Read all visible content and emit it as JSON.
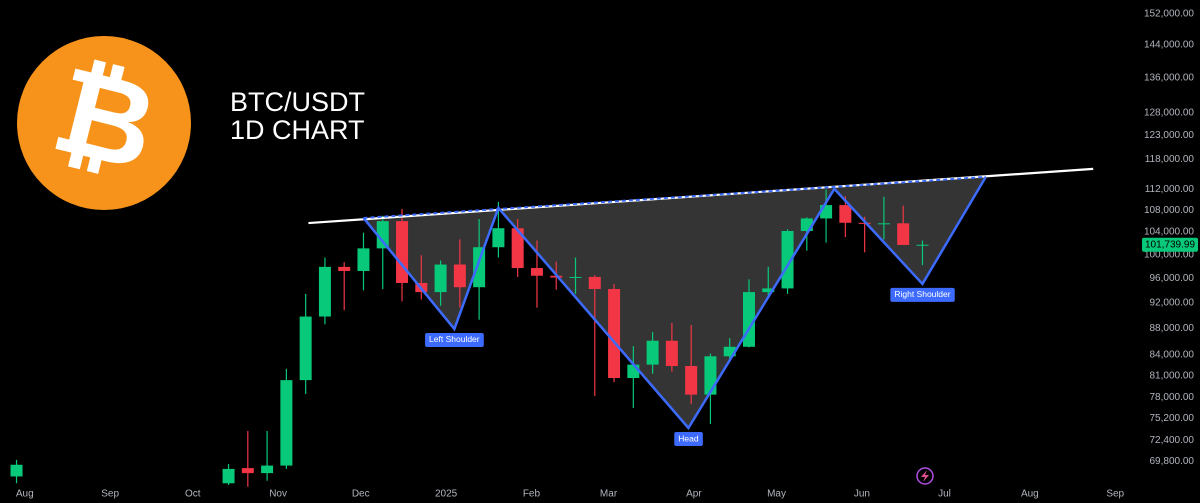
{
  "chart_data": {
    "type": "candlestick",
    "title": "BTC/USDT",
    "subtitle": "1D CHART",
    "logo_text": "₿",
    "log_scale": true,
    "grid": false,
    "up_color": "#08c979",
    "down_color": "#f23645",
    "x": [
      "2024-07-29",
      "2024-10-14",
      "2024-10-21",
      "2024-10-28",
      "2024-11-04",
      "2024-11-11",
      "2024-11-18",
      "2024-11-25",
      "2024-12-02",
      "2024-12-09",
      "2024-12-16",
      "2024-12-23",
      "2024-12-30",
      "2025-01-06",
      "2025-01-13",
      "2025-01-20",
      "2025-01-27",
      "2025-02-03",
      "2025-02-10",
      "2025-02-17",
      "2025-02-24",
      "2025-03-03",
      "2025-03-10",
      "2025-03-17",
      "2025-03-24",
      "2025-03-31",
      "2025-04-07",
      "2025-04-14",
      "2025-04-21",
      "2025-04-28",
      "2025-05-05",
      "2025-05-12",
      "2025-05-19",
      "2025-05-26",
      "2025-06-02",
      "2025-06-09",
      "2025-06-16",
      "2025-06-23"
    ],
    "open": [
      68000,
      67200,
      69000,
      68400,
      69300,
      80400,
      89800,
      97900,
      97200,
      101100,
      106000,
      95200,
      93700,
      98300,
      94500,
      101300,
      104700,
      97700,
      96400,
      96100,
      96200,
      94200,
      80700,
      82600,
      86100,
      82400,
      78400,
      83800,
      85200,
      93700,
      94300,
      104200,
      106500,
      109000,
      105700,
      105500,
      105600,
      101700
    ],
    "high": [
      70000,
      69500,
      73600,
      73600,
      82000,
      93400,
      99500,
      98700,
      103900,
      107000,
      108300,
      99900,
      99000,
      102700,
      106400,
      109600,
      106400,
      102500,
      98800,
      99500,
      96500,
      95000,
      85300,
      87400,
      88800,
      88500,
      84200,
      86500,
      95800,
      97900,
      104500,
      106700,
      112000,
      110700,
      106800,
      110600,
      108900,
      102500
    ],
    "low": [
      67200,
      67000,
      66800,
      67500,
      68900,
      78500,
      88600,
      90800,
      94000,
      94200,
      92200,
      92500,
      91500,
      91200,
      89300,
      99500,
      96200,
      91200,
      94100,
      93400,
      78200,
      80100,
      76600,
      81300,
      81600,
      77100,
      74500,
      83100,
      85100,
      92800,
      93400,
      100700,
      102100,
      103100,
      100400,
      102700,
      102300,
      98200
    ],
    "close": [
      69400,
      68900,
      68400,
      69300,
      80400,
      89800,
      97900,
      97200,
      101100,
      106000,
      95200,
      93700,
      98300,
      94500,
      101300,
      104700,
      97700,
      96400,
      96100,
      96200,
      94200,
      80700,
      82600,
      86100,
      82400,
      78400,
      83800,
      85200,
      93700,
      94300,
      104200,
      106500,
      109000,
      105700,
      105500,
      105600,
      101700,
      101739.99
    ],
    "last_price": {
      "value": 101739.99,
      "label": "101,739.99"
    },
    "neckline": {
      "color": "#ffffff",
      "x": [
        "2024-11-12",
        "2025-08-24"
      ],
      "y": [
        105650,
        116080
      ]
    },
    "pattern": {
      "color": "#3d6bff",
      "fill": "#3a3a3a",
      "x": [
        "2024-12-02",
        "2025-01-04",
        "2025-01-20",
        "2025-03-30",
        "2025-05-22",
        "2025-06-23",
        "2025-07-16"
      ],
      "y": [
        106590,
        87880,
        108470,
        73980,
        112120,
        95040,
        114480
      ],
      "labels": [
        "Left Shoulder",
        "Head",
        "Right Shoulder"
      ]
    },
    "xlim": [
      "2024-07-23",
      "2025-09-10"
    ],
    "ylim": [
      67000,
      155700
    ],
    "xticks": [
      {
        "value": "2024-08-01",
        "label": "Aug"
      },
      {
        "value": "2024-09-01",
        "label": "Sep"
      },
      {
        "value": "2024-10-01",
        "label": "Oct"
      },
      {
        "value": "2024-11-01",
        "label": "Nov"
      },
      {
        "value": "2024-12-01",
        "label": "Dec"
      },
      {
        "value": "2025-01-01",
        "label": "2025"
      },
      {
        "value": "2025-02-01",
        "label": "Feb"
      },
      {
        "value": "2025-03-01",
        "label": "Mar"
      },
      {
        "value": "2025-04-01",
        "label": "Apr"
      },
      {
        "value": "2025-05-01",
        "label": "May"
      },
      {
        "value": "2025-06-01",
        "label": "Jun"
      },
      {
        "value": "2025-07-01",
        "label": "Jul"
      },
      {
        "value": "2025-08-01",
        "label": "Aug"
      },
      {
        "value": "2025-09-01",
        "label": "Sep"
      }
    ],
    "yticks": [
      {
        "value": 69800,
        "label": "69,800.00"
      },
      {
        "value": 72400,
        "label": "72,400.00"
      },
      {
        "value": 75200,
        "label": "75,200.00"
      },
      {
        "value": 78000,
        "label": "78,000.00"
      },
      {
        "value": 81000,
        "label": "81,000.00"
      },
      {
        "value": 84000,
        "label": "84,000.00"
      },
      {
        "value": 88000,
        "label": "88,000.00"
      },
      {
        "value": 92000,
        "label": "92,000.00"
      },
      {
        "value": 96000,
        "label": "96,000.00"
      },
      {
        "value": 100000,
        "label": "100,000.00"
      },
      {
        "value": 104000,
        "label": "104,000.00"
      },
      {
        "value": 108000,
        "label": "108,000.00"
      },
      {
        "value": 112000,
        "label": "112,000.00"
      },
      {
        "value": 118000,
        "label": "118,000.00"
      },
      {
        "value": 123000,
        "label": "123,000.00"
      },
      {
        "value": 128000,
        "label": "128,000.00"
      },
      {
        "value": 136000,
        "label": "136,000.00"
      },
      {
        "value": 144000,
        "label": "144,000.00"
      },
      {
        "value": 152000,
        "label": "152,000.00"
      }
    ]
  }
}
